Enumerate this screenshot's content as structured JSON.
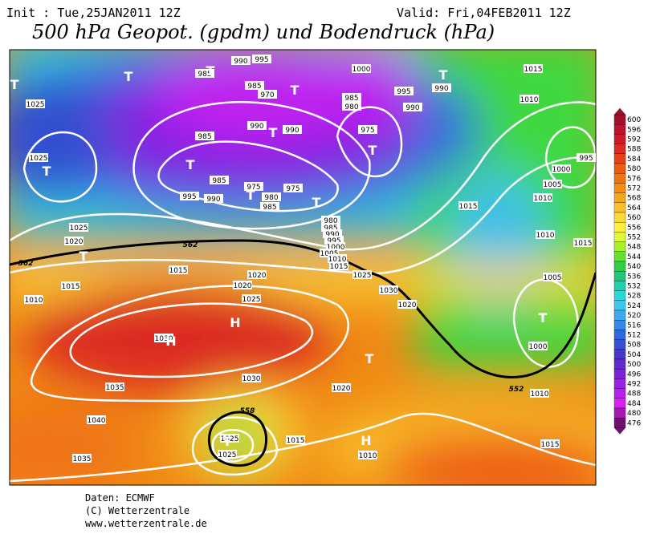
{
  "header": {
    "init": "Init : Tue,25JAN2011 12Z",
    "valid": "Valid: Fri,04FEB2011 12Z",
    "title": "500 hPa Geopot. (gpdm) und Bodendruck (hPa)"
  },
  "map": {
    "isobar_labels": [
      985,
      990,
      995,
      985,
      970,
      990,
      990,
      985,
      985,
      995,
      990,
      975,
      980,
      985,
      975,
      980,
      985,
      990,
      995,
      1000,
      1005,
      1010,
      1015,
      1000,
      995,
      990,
      990,
      985,
      980,
      975,
      1015,
      1010,
      1000,
      1005,
      1010,
      1015,
      1010,
      1015,
      1005,
      1000,
      1010,
      1015,
      995,
      1025,
      1020,
      1015,
      1010,
      1015,
      1020,
      1020,
      1025,
      1030,
      1035,
      1040,
      1035,
      1030,
      1025,
      1025,
      1015,
      1010,
      1020,
      1025,
      1030,
      1020,
      1025,
      1025
    ],
    "geopotential_labels": [
      562,
      562,
      558,
      552
    ],
    "pressure_centers": [
      "T",
      "T",
      "T",
      "T",
      "T",
      "T",
      "T",
      "T",
      "T",
      "T",
      "T",
      "T",
      "T",
      "T",
      "T",
      "H",
      "H",
      "H"
    ]
  },
  "legend": {
    "ticks": [
      600,
      596,
      592,
      588,
      584,
      580,
      576,
      572,
      568,
      564,
      560,
      556,
      552,
      548,
      544,
      540,
      536,
      532,
      528,
      524,
      520,
      516,
      512,
      508,
      504,
      500,
      496,
      492,
      488,
      484,
      480,
      476
    ],
    "colors": [
      "#a0102c",
      "#b81430",
      "#cc1c2c",
      "#dc2a24",
      "#e6401c",
      "#ee5a14",
      "#f07412",
      "#f28e14",
      "#f5a81c",
      "#f8c02a",
      "#fbd83a",
      "#fff040",
      "#e0f838",
      "#a8f028",
      "#68e030",
      "#30d040",
      "#20c878",
      "#20d0b0",
      "#28d8d8",
      "#38c8f0",
      "#40a8f0",
      "#3888e8",
      "#3068dc",
      "#3850d0",
      "#4838c8",
      "#6028d0",
      "#7c20dc",
      "#9820e8",
      "#b820f0",
      "#d820f0",
      "#a818b0",
      "#701070"
    ]
  },
  "credits": [
    "Daten: ECMWF",
    "(C) Wetterzentrale",
    "www.wetterzentrale.de"
  ]
}
